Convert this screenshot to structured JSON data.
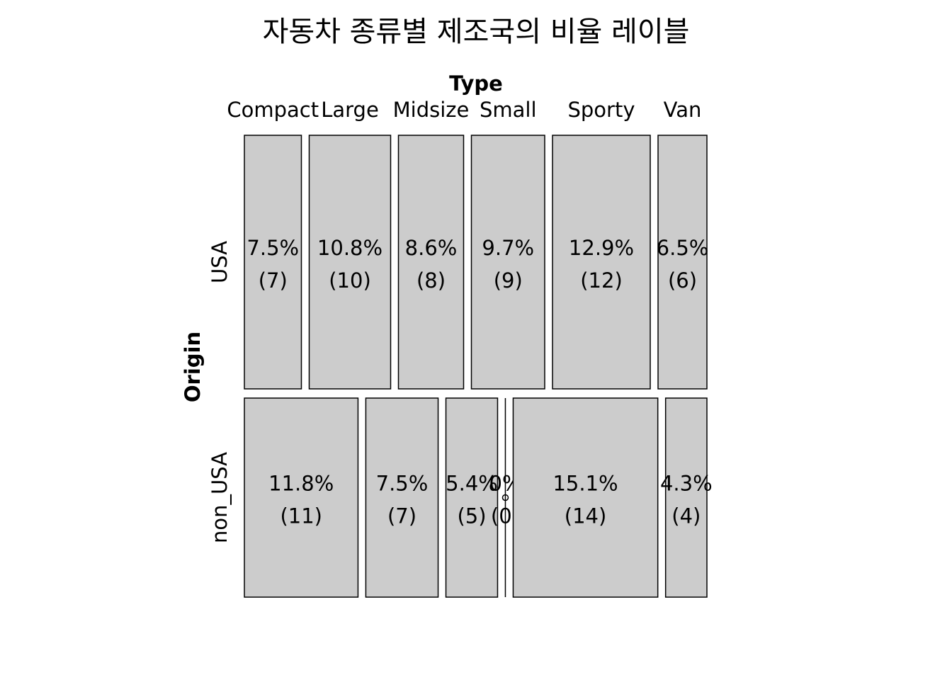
{
  "chart_data": {
    "type": "mosaic",
    "title": "자동차 종류별 제조국의 비율 레이블",
    "x_variable": "Type",
    "y_variable": "Origin",
    "type_levels": [
      "Compact",
      "Large",
      "Midsize",
      "Small",
      "Sporty",
      "Van"
    ],
    "origin_levels": [
      "USA",
      "non_USA"
    ],
    "cells": [
      {
        "origin": "USA",
        "type": "Compact",
        "count": 7,
        "percent": "7.5%"
      },
      {
        "origin": "USA",
        "type": "Large",
        "count": 10,
        "percent": "10.8%"
      },
      {
        "origin": "USA",
        "type": "Midsize",
        "count": 8,
        "percent": "8.6%"
      },
      {
        "origin": "USA",
        "type": "Small",
        "count": 9,
        "percent": "9.7%"
      },
      {
        "origin": "USA",
        "type": "Sporty",
        "count": 12,
        "percent": "12.9%"
      },
      {
        "origin": "USA",
        "type": "Van",
        "count": 6,
        "percent": "6.5%"
      },
      {
        "origin": "non_USA",
        "type": "Compact",
        "count": 11,
        "percent": "11.8%"
      },
      {
        "origin": "non_USA",
        "type": "Large",
        "count": 7,
        "percent": "7.5%"
      },
      {
        "origin": "non_USA",
        "type": "Midsize",
        "count": 5,
        "percent": "5.4%"
      },
      {
        "origin": "non_USA",
        "type": "Small",
        "count": 0,
        "percent": "0%"
      },
      {
        "origin": "non_USA",
        "type": "Sporty",
        "count": 14,
        "percent": "15.1%"
      },
      {
        "origin": "non_USA",
        "type": "Van",
        "count": 4,
        "percent": "4.3%"
      }
    ],
    "tile_color": "#cccccc",
    "border_color": "#000000"
  }
}
